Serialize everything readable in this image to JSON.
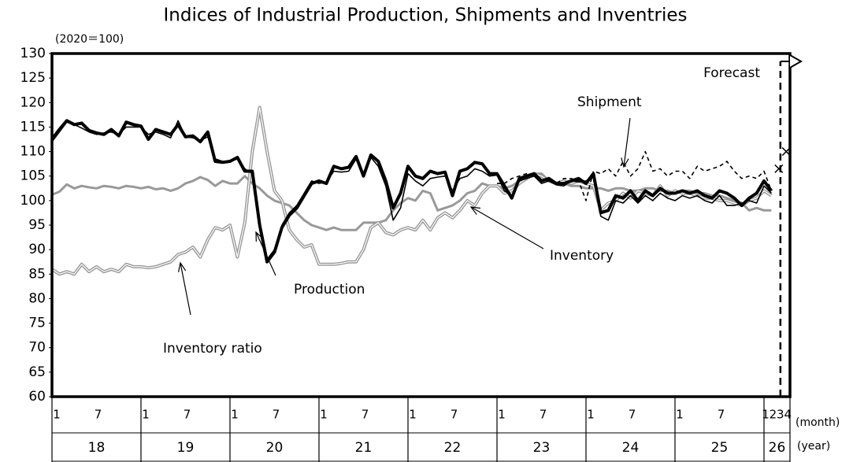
{
  "chart_data": {
    "type": "line",
    "title": "Indices of Industrial Production, Shipments and Inventries",
    "y_unit": "(2020＝100)",
    "x_unit": "(month)",
    "year_unit": "(year)",
    "forecast_label": "Forecast",
    "ylim": [
      60,
      130
    ],
    "yticks": [
      60,
      65,
      70,
      75,
      80,
      85,
      90,
      95,
      100,
      105,
      110,
      115,
      120,
      125,
      130
    ],
    "grid": false,
    "years": [
      "18",
      "19",
      "20",
      "21",
      "22",
      "23",
      "24",
      "25",
      "26"
    ],
    "categories": [
      "1",
      null,
      null,
      null,
      null,
      null,
      "7",
      null,
      null,
      null,
      null,
      null,
      "1",
      null,
      null,
      null,
      null,
      null,
      "7",
      null,
      null,
      null,
      null,
      null,
      "1",
      null,
      null,
      null,
      null,
      null,
      "7",
      null,
      null,
      null,
      null,
      null,
      "1",
      null,
      null,
      null,
      null,
      null,
      "7",
      null,
      null,
      null,
      null,
      null,
      "1",
      null,
      null,
      null,
      null,
      null,
      "7",
      null,
      null,
      null,
      null,
      null,
      "1",
      null,
      null,
      null,
      null,
      null,
      "7",
      null,
      null,
      null,
      null,
      null,
      "1",
      null,
      null,
      null,
      null,
      null,
      "7",
      null,
      null,
      null,
      null,
      null,
      "1",
      null,
      null,
      null,
      null,
      null,
      "7",
      null,
      null,
      null,
      null,
      null,
      "1",
      "2",
      "3",
      "4"
    ],
    "series": [
      {
        "name": "Production",
        "color": "#000000",
        "width": 4,
        "values": [
          112.5,
          114.5,
          116.3,
          115.5,
          115.8,
          114.3,
          113.8,
          113.5,
          114.5,
          113.2,
          116,
          115.5,
          115.2,
          112.5,
          114.5,
          114,
          113.5,
          115.5,
          113,
          113.2,
          112,
          114,
          108,
          107.8,
          108,
          108.8,
          106,
          106,
          95,
          87.5,
          89.5,
          94.5,
          97,
          98.5,
          101,
          103.5,
          104,
          103.5,
          107,
          106.5,
          106.8,
          109,
          105,
          109.3,
          108,
          104,
          98.5,
          101.5,
          107,
          105,
          104.5,
          106,
          105.5,
          105.8,
          101,
          106,
          106.5,
          107.8,
          107.5,
          105.5,
          105.5,
          103,
          100.5,
          104.5,
          105,
          105.5,
          104,
          104.5,
          103.5,
          103.5,
          104,
          104.5,
          103.5,
          105.5,
          97.5,
          98,
          101,
          100.5,
          102,
          100,
          102,
          101,
          102.5,
          101.5,
          101.5,
          102,
          101.5,
          102,
          101,
          100.5,
          102,
          101.5,
          100.5,
          99,
          100.5,
          101.5,
          104,
          102,
          null,
          null
        ]
      },
      {
        "name": "Shipment",
        "color": "#000000",
        "width": 1.6,
        "values": [
          112,
          114,
          116,
          115.5,
          114.8,
          114,
          113.5,
          113.8,
          114,
          113.5,
          115,
          115,
          115,
          113.5,
          114,
          113.5,
          112.8,
          116.3,
          113,
          112.8,
          112.3,
          113,
          108.5,
          108,
          108,
          108.5,
          106.5,
          105.5,
          95.5,
          88,
          90,
          95,
          97.5,
          99,
          101.5,
          104,
          103.5,
          103.8,
          106,
          105.8,
          106,
          108.5,
          105.5,
          108.8,
          107,
          103,
          96,
          98.5,
          105.5,
          104,
          103,
          104.5,
          104.8,
          105,
          102,
          104.5,
          105,
          106.5,
          106,
          105,
          105.2,
          102,
          101,
          104,
          104.5,
          105,
          103.5,
          104,
          103.2,
          103,
          104,
          103.8,
          104,
          104.8,
          96.8,
          96,
          100,
          99.5,
          101,
          99.5,
          101,
          100,
          101.5,
          100.5,
          100,
          101,
          100.5,
          101,
          100,
          99.5,
          101,
          99,
          99,
          99.5,
          100,
          99.5,
          103,
          101.5,
          null,
          null
        ]
      },
      {
        "color": "#000000",
        "width": 1.6,
        "dash": true,
        "values": [
          null,
          null,
          null,
          null,
          null,
          null,
          null,
          null,
          null,
          null,
          null,
          null,
          null,
          null,
          null,
          null,
          null,
          null,
          null,
          null,
          null,
          null,
          null,
          null,
          null,
          null,
          null,
          null,
          null,
          null,
          null,
          null,
          null,
          null,
          null,
          null,
          null,
          null,
          null,
          null,
          null,
          null,
          null,
          null,
          null,
          null,
          null,
          null,
          null,
          null,
          null,
          null,
          null,
          null,
          null,
          null,
          null,
          null,
          null,
          null,
          103.5,
          103.5,
          104.5,
          105,
          105.5,
          105,
          104.5,
          104,
          103.5,
          104.5,
          104.5,
          104,
          100,
          106,
          105.5,
          106.5,
          105,
          108,
          105,
          106.5,
          110,
          106,
          106.5,
          105,
          106,
          106,
          104.5,
          107,
          106,
          106.5,
          107,
          108,
          106,
          104.5,
          105,
          104.5,
          106,
          102,
          null,
          null
        ]
      },
      {
        "name": "Inventory",
        "color": "#999999",
        "width": 3,
        "values": [
          101.2,
          101.8,
          103.3,
          102.5,
          103,
          102.7,
          102.5,
          103,
          102.8,
          102.5,
          103,
          102.8,
          102.5,
          102.8,
          102.3,
          102.5,
          102,
          102.5,
          103.5,
          104,
          104.8,
          104.2,
          103,
          104,
          103.5,
          103.5,
          105,
          103.5,
          102.5,
          101,
          100,
          99.5,
          99,
          97.5,
          96,
          95,
          94.5,
          94,
          94.5,
          94,
          94,
          94,
          95.5,
          95.5,
          95.5,
          96,
          98,
          99.5,
          100.5,
          100,
          102,
          101.5,
          98,
          98.5,
          99,
          100,
          101.5,
          102,
          103.5,
          103,
          103,
          102.5,
          103,
          104,
          105,
          105.5,
          105.5,
          104,
          103.5,
          103.5,
          103,
          103,
          102.5,
          102.5,
          102.5,
          102,
          102.5,
          102.5,
          102,
          102,
          102.5,
          102.5,
          102,
          102,
          101.5,
          102,
          102,
          101.5,
          101.5,
          101,
          101,
          100.5,
          100,
          99.5,
          98,
          98.5,
          98,
          98,
          null,
          null
        ]
      },
      {
        "name": "Inventory ratio",
        "color": "#999999",
        "width": 4,
        "double": true,
        "values": [
          86,
          85,
          85.5,
          85,
          87,
          85.5,
          86.5,
          85.5,
          86,
          85.5,
          87,
          86.5,
          86.5,
          86.3,
          86.5,
          87,
          87.5,
          89,
          89.5,
          90.5,
          88.5,
          92,
          94.5,
          94,
          95,
          88.5,
          95.5,
          110,
          119,
          110,
          102,
          100,
          94,
          92,
          90.5,
          91,
          87,
          87,
          87,
          87.2,
          87.5,
          87.5,
          90,
          94.5,
          95.5,
          93.5,
          93,
          94,
          94.5,
          94,
          96,
          94,
          96.5,
          97.5,
          96.5,
          98,
          100,
          99,
          101.5,
          103,
          103,
          101.5,
          102,
          103.5,
          104.5,
          105.5,
          105,
          104,
          103.5,
          104,
          103.5,
          104,
          103.5,
          103,
          98,
          99.5,
          100,
          101.5,
          100.5,
          102,
          101.5,
          101,
          103,
          101,
          102,
          101.5,
          101.5,
          101,
          100.5,
          100.5,
          100,
          100,
          99.5,
          99,
          100,
          100.5,
          102,
          101,
          null,
          null
        ]
      },
      {
        "color": "#000000",
        "marker": "x",
        "values": [
          null,
          null,
          null,
          null,
          null,
          null,
          null,
          null,
          null,
          null,
          null,
          null,
          null,
          null,
          null,
          null,
          null,
          null,
          null,
          null,
          null,
          null,
          null,
          null,
          null,
          null,
          null,
          null,
          null,
          null,
          null,
          null,
          null,
          null,
          null,
          null,
          null,
          null,
          null,
          null,
          null,
          null,
          null,
          null,
          null,
          null,
          null,
          null,
          null,
          null,
          null,
          null,
          null,
          null,
          null,
          null,
          null,
          null,
          null,
          null,
          null,
          null,
          null,
          null,
          null,
          null,
          null,
          null,
          null,
          null,
          null,
          null,
          null,
          null,
          null,
          null,
          null,
          null,
          null,
          null,
          null,
          null,
          null,
          null,
          null,
          null,
          null,
          null,
          null,
          null,
          null,
          null,
          null,
          null,
          null,
          null,
          null,
          null,
          106.5,
          110
        ]
      }
    ]
  }
}
